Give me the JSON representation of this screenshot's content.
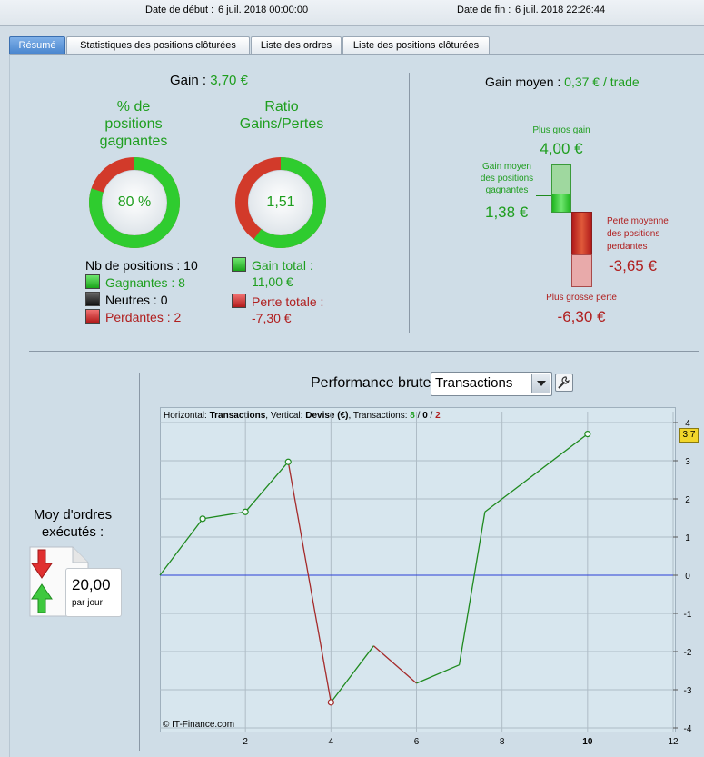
{
  "header": {
    "start_label": "Date de début :",
    "start_value": "6 juil. 2018 00:00:00",
    "end_label": "Date de fin :",
    "end_value": "6 juil. 2018 22:26:44"
  },
  "tabs": [
    {
      "label": "Résumé",
      "active": true
    },
    {
      "label": "Statistiques des positions clôturées"
    },
    {
      "label": "Liste des ordres"
    },
    {
      "label": "Liste des positions clôturées"
    }
  ],
  "summary": {
    "gain_label": "Gain :",
    "gain_value": "3,70 €",
    "win_pct_title_1": "% de",
    "win_pct_title_2": "positions",
    "win_pct_title_3": "gagnantes",
    "win_pct_value": "80 %",
    "win_pct_fraction": 0.8,
    "ratio_title_1": "Ratio",
    "ratio_title_2": "Gains/Pertes",
    "ratio_value": "1,51",
    "ratio_fraction": 0.6,
    "nb_positions": "Nb de positions : 10",
    "gagnantes": "Gagnantes : 8",
    "neutres": "Neutres : 0",
    "perdantes": "Perdantes : 2",
    "gain_total_label": "Gain total :",
    "gain_total_value": "11,00 €",
    "perte_totale_label": "Perte totale :",
    "perte_totale_value": "-7,30 €"
  },
  "gain_moyen": {
    "label": "Gain moyen :",
    "value": "0,37 € / trade",
    "plus_gros_gain_label": "Plus gros gain",
    "plus_gros_gain_value": "4,00 €",
    "gain_moyen_pos_1": "Gain moyen",
    "gain_moyen_pos_2": "des positions",
    "gain_moyen_pos_3": "gagnantes",
    "gain_moyen_pos_value": "1,38 €",
    "perte_moyenne_1": "Perte moyenne",
    "perte_moyenne_2": "des positions",
    "perte_moyenne_3": "perdantes",
    "perte_moyenne_value": "-3,65 €",
    "plus_grosse_perte_label": "Plus grosse perte",
    "plus_grosse_perte_value": "-6,30 €"
  },
  "orders": {
    "title_1": "Moy d'ordres",
    "title_2": "exécutés :",
    "value": "20,00",
    "unit": "par jour"
  },
  "performance": {
    "title": "Performance brute",
    "dropdown_value": "Transactions"
  },
  "chart_data": {
    "type": "line",
    "info_horizontal_label": "Horizontal:",
    "info_horizontal_value": "Transactions",
    "info_vertical_label": ", Vertical:",
    "info_vertical_value": "Devise (€)",
    "info_tx_label": ", Transactions:",
    "info_tx_win": "8",
    "info_tx_neutral": "0",
    "info_tx_loss": "2",
    "sep": "/",
    "credit": "© IT-Finance.com",
    "last_value_badge": "3,7",
    "x": [
      0,
      1,
      2,
      3,
      4,
      5,
      6,
      7,
      7.6,
      10
    ],
    "y": [
      0,
      1.48,
      1.66,
      2.97,
      -3.33,
      -1.85,
      -2.83,
      -2.35,
      1.66,
      3.7
    ],
    "segment_colors": [
      "#1e8a1e",
      "#1e8a1e",
      "#1e8a1e",
      "#a52a2a",
      "#1e8a1e",
      "#a52a2a",
      "#1e8a1e",
      "#1e8a1e",
      "#1e8a1e"
    ],
    "markers_x": [
      1,
      2,
      3,
      4,
      10
    ],
    "xlim": [
      0,
      12
    ],
    "ylim": [
      -4,
      4
    ],
    "x_ticks": [
      "2",
      "4",
      "6",
      "8",
      "10",
      "12"
    ],
    "y_ticks": [
      "4",
      "3",
      "2",
      "1",
      "0",
      "-1",
      "-2",
      "-3",
      "-4"
    ],
    "grid": true,
    "zero_line_color": "#2a3fd6"
  }
}
